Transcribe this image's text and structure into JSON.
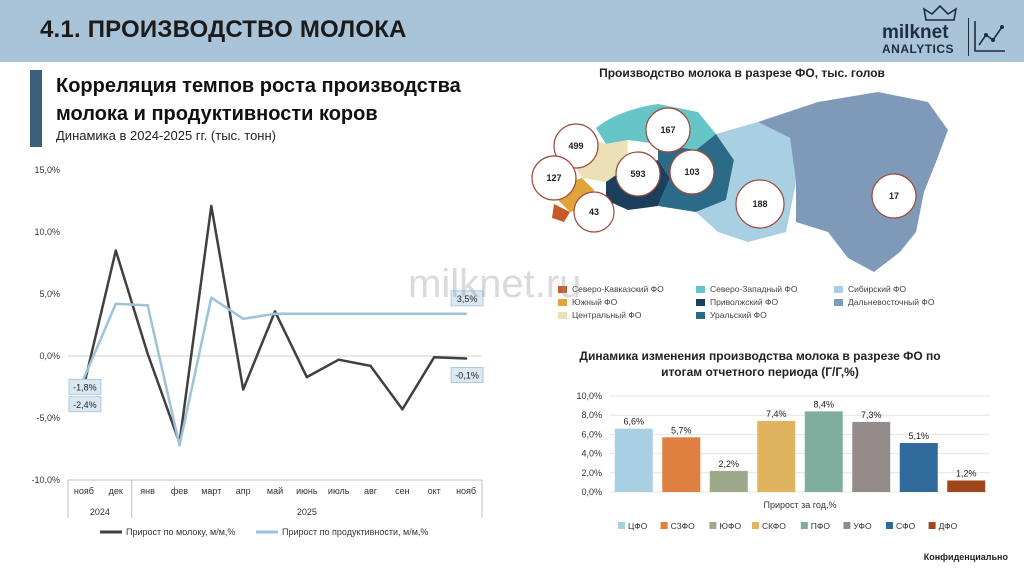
{
  "header": {
    "title": "4.1. ПРОИЗВОДСТВО МОЛОКА"
  },
  "logo": {
    "name": "milknet",
    "sub": "ANALYTICS"
  },
  "section": {
    "title_line1": "Корреляция темпов роста производства",
    "title_line2": "молока и продуктивности коров",
    "subtitle": "Динамика в 2024-2025 гг. (тыс. тонн)"
  },
  "watermark": "milknet.ru",
  "footer": "Конфиденциально",
  "colors": {
    "milk_line": "#404040",
    "productivity_line": "#9ec2da",
    "header_bg": "#a9c4d8",
    "label_box": "#dbe8f2"
  },
  "chart_data": [
    {
      "type": "line",
      "title": "",
      "categories": [
        "нояб",
        "дек",
        "янв",
        "фев",
        "март",
        "апр",
        "май",
        "июнь",
        "июль",
        "авг",
        "сен",
        "окт",
        "нояб"
      ],
      "year_groups": [
        {
          "label": "2024",
          "span": 2
        },
        {
          "label": "2025",
          "span": 11
        }
      ],
      "ylim": [
        -10,
        15
      ],
      "yticks": [
        "-10,0%",
        "-5,0%",
        "0,0%",
        "5,0%",
        "10,0%",
        "15,0%"
      ],
      "series": [
        {
          "name": "Прирост по молоку, м/м,%",
          "values": [
            -2.4,
            8.5,
            0.2,
            -7.0,
            12.1,
            -2.7,
            3.6,
            -1.7,
            -0.3,
            -0.8,
            -4.3,
            -0.1,
            -0.2
          ]
        },
        {
          "name": "Прирост по продуктивности, м/м,%",
          "values": [
            -1.8,
            4.2,
            4.1,
            -7.2,
            4.7,
            3.0,
            3.4,
            3.4,
            3.4,
            3.4,
            3.4,
            3.4,
            3.4
          ]
        }
      ],
      "annotations": [
        "-1,8%",
        "-2,4%",
        "3,5%",
        "-0,1%"
      ]
    },
    {
      "type": "map",
      "title": "Производство молока в разрезе ФО, тыс. голов",
      "values": [
        {
          "label": "499"
        },
        {
          "label": "167"
        },
        {
          "label": "127"
        },
        {
          "label": "593"
        },
        {
          "label": "103"
        },
        {
          "label": "43"
        },
        {
          "label": "188"
        },
        {
          "label": "17"
        }
      ],
      "legend": [
        {
          "name": "Северо-Кавказский ФО",
          "color": "#c85a27"
        },
        {
          "name": "Северо-Западный ФО",
          "color": "#66c5c6"
        },
        {
          "name": "Сибирский ФО",
          "color": "#a9cfe2"
        },
        {
          "name": "Южный ФО",
          "color": "#e0a43a"
        },
        {
          "name": "Приволжский ФО",
          "color": "#1c3f5e"
        },
        {
          "name": "Дальневосточный ФО",
          "color": "#7e9ab8"
        },
        {
          "name": "Центральный ФО",
          "color": "#ece1b6"
        },
        {
          "name": "Уральский ФО",
          "color": "#2b6b88"
        }
      ]
    },
    {
      "type": "bar",
      "title_line1": "Динамика изменения производства молока в разрезе ФО по",
      "title_line2": "итогам отчетного периода (Г/Г,%)",
      "categories": [
        "ЦФО",
        "СЗФО",
        "ЮФО",
        "СКФО",
        "ПФО",
        "УФО",
        "СФО",
        "ДФО"
      ],
      "values": [
        6.6,
        5.7,
        2.2,
        7.4,
        8.4,
        7.3,
        5.1,
        1.2
      ],
      "value_labels": [
        "6,6%",
        "5,7%",
        "2,2%",
        "7,4%",
        "8,4%",
        "7,3%",
        "5,1%",
        "1,2%"
      ],
      "colors": [
        "#a9cfe2",
        "#e08040",
        "#9ea98a",
        "#e0b45e",
        "#7fae9f",
        "#948c8a",
        "#2f6a9a",
        "#a0461c"
      ],
      "xlabel": "Прирост за год,%",
      "ylim": [
        0,
        10
      ],
      "yticks": [
        "0,0%",
        "2,0%",
        "4,0%",
        "6,0%",
        "8,0%",
        "10,0%"
      ]
    }
  ]
}
